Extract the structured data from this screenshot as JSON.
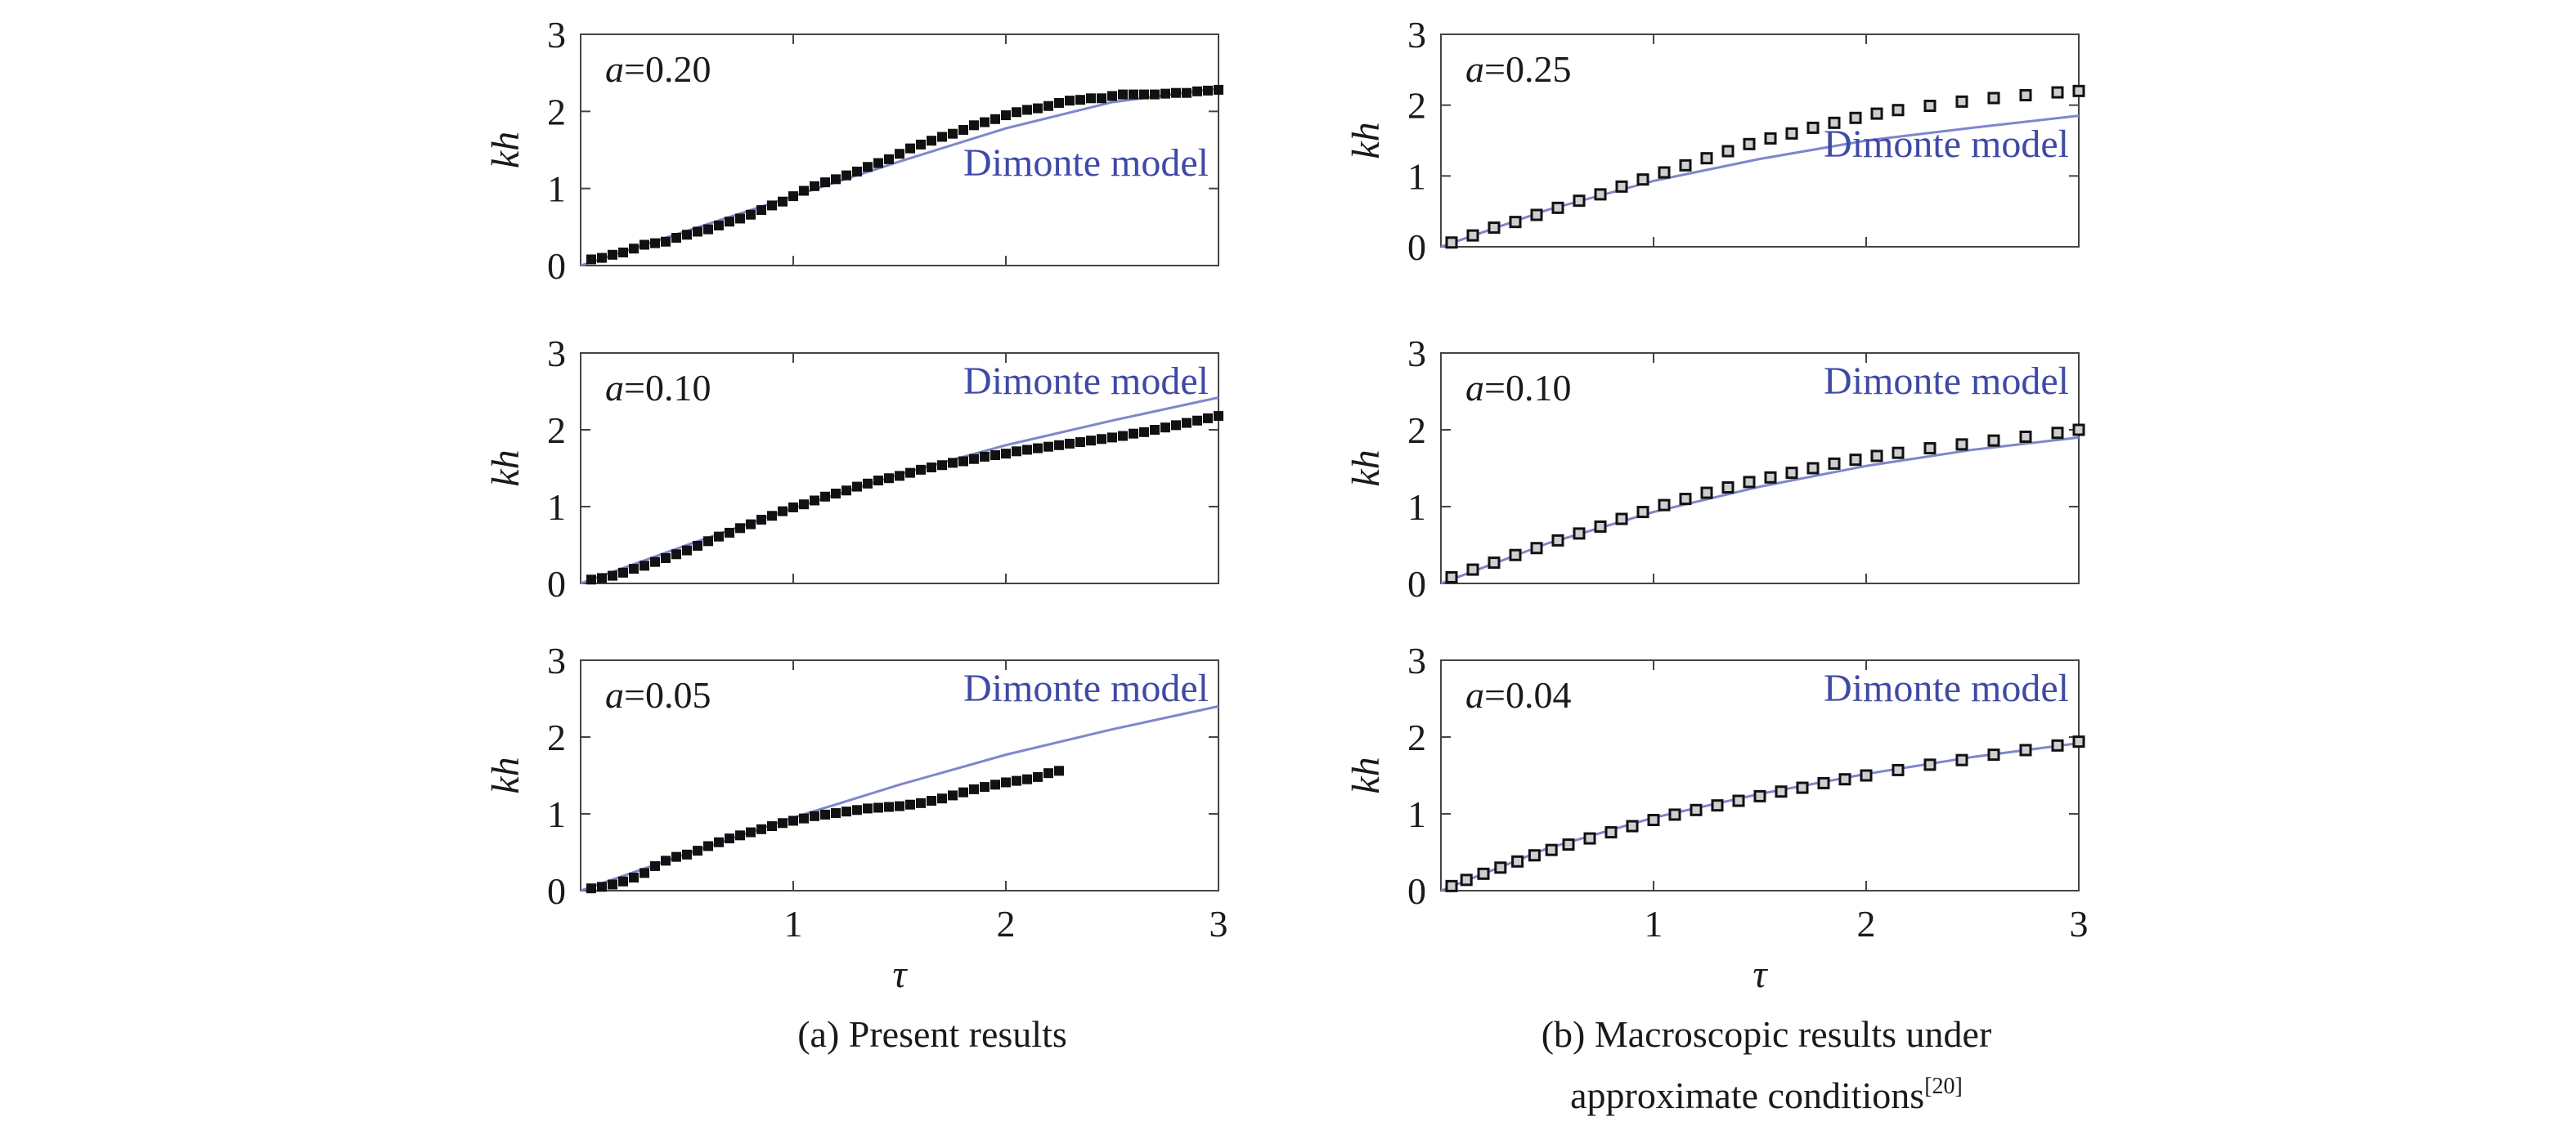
{
  "figure": {
    "caption_a": "(a) Present results",
    "caption_b_line1": "(b) Macroscopic results under",
    "caption_b_line2": "approximate conditions",
    "caption_b_ref": "[20]"
  },
  "colors": {
    "model_line": "#7f86cc",
    "model_text": "#3f4aa6",
    "points": "#111111"
  },
  "chart_data": [
    {
      "id": "a1",
      "type": "scatter",
      "xlabel": "τ",
      "ylabel": "kh",
      "xlim": [
        0,
        3
      ],
      "ylim": [
        0,
        3
      ],
      "xticks": [
        1,
        2
      ],
      "yticks": [
        0,
        1,
        2,
        3
      ],
      "show_xticklabels": false,
      "show_xlabel": false,
      "param_symbol": "a",
      "param_value": "=0.20",
      "model_label": "Dimonte model",
      "model_label_pos": "lower-right",
      "model_curve": {
        "x": [
          0,
          0.5,
          1,
          1.5,
          2,
          2.5,
          3
        ],
        "y": [
          0,
          0.45,
          0.9,
          1.35,
          1.78,
          2.12,
          2.3
        ]
      },
      "series": [
        {
          "name": "present results",
          "x": [
            0.05,
            0.1,
            0.15,
            0.2,
            0.25,
            0.3,
            0.35,
            0.4,
            0.45,
            0.5,
            0.55,
            0.6,
            0.65,
            0.7,
            0.75,
            0.8,
            0.85,
            0.9,
            0.95,
            1.0,
            1.05,
            1.1,
            1.15,
            1.2,
            1.25,
            1.3,
            1.35,
            1.4,
            1.45,
            1.5,
            1.55,
            1.6,
            1.65,
            1.7,
            1.75,
            1.8,
            1.85,
            1.9,
            1.95,
            2.0,
            2.05,
            2.1,
            2.15,
            2.2,
            2.25,
            2.3,
            2.35,
            2.4,
            2.45,
            2.5,
            2.55,
            2.6,
            2.65,
            2.7,
            2.75,
            2.8,
            2.85,
            2.9,
            2.95,
            3.0
          ],
          "y": [
            0.08,
            0.1,
            0.14,
            0.17,
            0.22,
            0.27,
            0.29,
            0.31,
            0.36,
            0.4,
            0.44,
            0.47,
            0.52,
            0.57,
            0.61,
            0.66,
            0.72,
            0.78,
            0.83,
            0.9,
            0.97,
            1.03,
            1.08,
            1.12,
            1.17,
            1.22,
            1.28,
            1.33,
            1.38,
            1.45,
            1.52,
            1.57,
            1.62,
            1.67,
            1.71,
            1.76,
            1.82,
            1.86,
            1.9,
            1.95,
            1.99,
            2.02,
            2.04,
            2.07,
            2.11,
            2.14,
            2.15,
            2.17,
            2.17,
            2.2,
            2.22,
            2.22,
            2.22,
            2.22,
            2.23,
            2.24,
            2.24,
            2.26,
            2.27,
            2.28
          ]
        }
      ]
    },
    {
      "id": "b1",
      "type": "scatter",
      "xlabel": "τ",
      "ylabel": "kh",
      "xlim": [
        0,
        3
      ],
      "ylim": [
        0,
        3
      ],
      "xticks": [
        1,
        2
      ],
      "yticks": [
        0,
        1,
        2,
        3
      ],
      "show_xticklabels": false,
      "show_xlabel": false,
      "param_symbol": "a",
      "param_value": "=0.25",
      "model_label": "Dimonte model",
      "model_label_pos": "lower-right",
      "model_curve": {
        "x": [
          0,
          0.5,
          1,
          1.5,
          2,
          2.5,
          3
        ],
        "y": [
          0,
          0.52,
          0.93,
          1.24,
          1.5,
          1.68,
          1.85
        ]
      },
      "series": [
        {
          "name": "macroscopic results",
          "x": [
            0.05,
            0.15,
            0.25,
            0.35,
            0.45,
            0.55,
            0.65,
            0.75,
            0.85,
            0.95,
            1.05,
            1.15,
            1.25,
            1.35,
            1.45,
            1.55,
            1.65,
            1.75,
            1.85,
            1.95,
            2.05,
            2.15,
            2.3,
            2.45,
            2.6,
            2.75,
            2.9,
            3.0
          ],
          "y": [
            0.06,
            0.16,
            0.27,
            0.35,
            0.45,
            0.55,
            0.65,
            0.74,
            0.85,
            0.95,
            1.05,
            1.15,
            1.25,
            1.35,
            1.45,
            1.53,
            1.6,
            1.68,
            1.75,
            1.82,
            1.88,
            1.93,
            1.99,
            2.05,
            2.1,
            2.14,
            2.18,
            2.2
          ]
        }
      ]
    },
    {
      "id": "a2",
      "type": "scatter",
      "xlabel": "τ",
      "ylabel": "kh",
      "xlim": [
        0,
        3
      ],
      "ylim": [
        0,
        3
      ],
      "xticks": [
        1,
        2
      ],
      "yticks": [
        0,
        1,
        2,
        3
      ],
      "show_xticklabels": false,
      "show_xlabel": false,
      "param_symbol": "a",
      "param_value": "=0.10",
      "model_label": "Dimonte model",
      "model_label_pos": "upper-right",
      "model_curve": {
        "x": [
          0,
          0.5,
          1,
          1.5,
          2,
          2.5,
          3
        ],
        "y": [
          0,
          0.5,
          0.98,
          1.42,
          1.8,
          2.12,
          2.42
        ]
      },
      "series": [
        {
          "name": "present results",
          "x": [
            0.05,
            0.1,
            0.15,
            0.2,
            0.25,
            0.3,
            0.35,
            0.4,
            0.45,
            0.5,
            0.55,
            0.6,
            0.65,
            0.7,
            0.75,
            0.8,
            0.85,
            0.9,
            0.95,
            1.0,
            1.05,
            1.1,
            1.15,
            1.2,
            1.25,
            1.3,
            1.35,
            1.4,
            1.45,
            1.5,
            1.55,
            1.6,
            1.65,
            1.7,
            1.75,
            1.8,
            1.85,
            1.9,
            1.95,
            2.0,
            2.05,
            2.1,
            2.15,
            2.2,
            2.25,
            2.3,
            2.35,
            2.4,
            2.45,
            2.5,
            2.55,
            2.6,
            2.65,
            2.7,
            2.75,
            2.8,
            2.85,
            2.9,
            2.95,
            3.0
          ],
          "y": [
            0.05,
            0.07,
            0.1,
            0.14,
            0.19,
            0.23,
            0.28,
            0.33,
            0.38,
            0.43,
            0.49,
            0.55,
            0.61,
            0.66,
            0.72,
            0.77,
            0.83,
            0.88,
            0.94,
            0.99,
            1.03,
            1.08,
            1.13,
            1.17,
            1.21,
            1.26,
            1.3,
            1.34,
            1.37,
            1.4,
            1.44,
            1.48,
            1.51,
            1.54,
            1.57,
            1.59,
            1.62,
            1.65,
            1.67,
            1.69,
            1.72,
            1.74,
            1.76,
            1.78,
            1.8,
            1.82,
            1.84,
            1.86,
            1.88,
            1.9,
            1.92,
            1.95,
            1.97,
            2.0,
            2.03,
            2.06,
            2.09,
            2.12,
            2.15,
            2.18
          ]
        }
      ]
    },
    {
      "id": "b2",
      "type": "scatter",
      "xlabel": "τ",
      "ylabel": "kh",
      "xlim": [
        0,
        3
      ],
      "ylim": [
        0,
        3
      ],
      "xticks": [
        1,
        2
      ],
      "yticks": [
        0,
        1,
        2,
        3
      ],
      "show_xticklabels": false,
      "show_xlabel": false,
      "param_symbol": "a",
      "param_value": "=0.10",
      "model_label": "Dimonte model",
      "model_label_pos": "upper-right",
      "model_curve": {
        "x": [
          0,
          0.5,
          1,
          1.5,
          2,
          2.5,
          3
        ],
        "y": [
          0,
          0.52,
          0.93,
          1.26,
          1.53,
          1.74,
          1.9
        ]
      },
      "series": [
        {
          "name": "macroscopic results",
          "x": [
            0.05,
            0.15,
            0.25,
            0.35,
            0.45,
            0.55,
            0.65,
            0.75,
            0.85,
            0.95,
            1.05,
            1.15,
            1.25,
            1.35,
            1.45,
            1.55,
            1.65,
            1.75,
            1.85,
            1.95,
            2.05,
            2.15,
            2.3,
            2.45,
            2.6,
            2.75,
            2.9,
            3.0
          ],
          "y": [
            0.08,
            0.18,
            0.27,
            0.37,
            0.46,
            0.56,
            0.65,
            0.74,
            0.84,
            0.93,
            1.02,
            1.1,
            1.18,
            1.25,
            1.32,
            1.38,
            1.44,
            1.5,
            1.56,
            1.61,
            1.66,
            1.7,
            1.76,
            1.81,
            1.86,
            1.91,
            1.96,
            2.0
          ]
        }
      ]
    },
    {
      "id": "a3",
      "type": "scatter",
      "xlabel": "τ",
      "ylabel": "kh",
      "xlim": [
        0,
        3
      ],
      "ylim": [
        0,
        3
      ],
      "xticks": [
        1,
        2
      ],
      "yticks": [
        0,
        1,
        2,
        3
      ],
      "show_xticklabels": true,
      "show_xlabel": true,
      "param_symbol": "a",
      "param_value": "=0.05",
      "model_label": "Dimonte model",
      "model_label_pos": "upper-right",
      "model_curve": {
        "x": [
          0,
          0.5,
          1,
          1.5,
          2,
          2.5,
          3
        ],
        "y": [
          0,
          0.48,
          0.95,
          1.38,
          1.77,
          2.1,
          2.4
        ]
      },
      "series": [
        {
          "name": "present results",
          "x": [
            0.05,
            0.1,
            0.15,
            0.2,
            0.25,
            0.3,
            0.35,
            0.4,
            0.45,
            0.5,
            0.55,
            0.6,
            0.65,
            0.7,
            0.75,
            0.8,
            0.85,
            0.9,
            0.95,
            1.0,
            1.05,
            1.1,
            1.15,
            1.2,
            1.25,
            1.3,
            1.35,
            1.4,
            1.45,
            1.5,
            1.55,
            1.6,
            1.65,
            1.7,
            1.75,
            1.8,
            1.85,
            1.9,
            1.95,
            2.0,
            2.05,
            2.1,
            2.15,
            2.2,
            2.25
          ],
          "y": [
            0.03,
            0.05,
            0.08,
            0.12,
            0.17,
            0.23,
            0.32,
            0.39,
            0.44,
            0.47,
            0.52,
            0.58,
            0.63,
            0.68,
            0.72,
            0.76,
            0.8,
            0.84,
            0.88,
            0.91,
            0.94,
            0.97,
            0.99,
            1.01,
            1.03,
            1.05,
            1.07,
            1.08,
            1.09,
            1.1,
            1.12,
            1.14,
            1.17,
            1.2,
            1.24,
            1.28,
            1.32,
            1.35,
            1.38,
            1.41,
            1.43,
            1.45,
            1.48,
            1.53,
            1.56
          ]
        }
      ]
    },
    {
      "id": "b3",
      "type": "scatter",
      "xlabel": "τ",
      "ylabel": "kh",
      "xlim": [
        0,
        3
      ],
      "ylim": [
        0,
        3
      ],
      "xticks": [
        1,
        2
      ],
      "yticks": [
        0,
        1,
        2,
        3
      ],
      "show_xticklabels": true,
      "show_xlabel": true,
      "param_symbol": "a",
      "param_value": "=0.04",
      "model_label": "Dimonte model",
      "model_label_pos": "upper-right",
      "model_curve": {
        "x": [
          0,
          0.5,
          1,
          1.5,
          2,
          2.5,
          3
        ],
        "y": [
          0,
          0.55,
          0.95,
          1.26,
          1.52,
          1.74,
          1.92
        ]
      },
      "series": [
        {
          "name": "macroscopic results",
          "x": [
            0.05,
            0.12,
            0.2,
            0.28,
            0.36,
            0.44,
            0.52,
            0.6,
            0.7,
            0.8,
            0.9,
            1.0,
            1.1,
            1.2,
            1.3,
            1.4,
            1.5,
            1.6,
            1.7,
            1.8,
            1.9,
            2.0,
            2.15,
            2.3,
            2.45,
            2.6,
            2.75,
            2.9,
            3.0
          ],
          "y": [
            0.06,
            0.14,
            0.22,
            0.3,
            0.38,
            0.46,
            0.53,
            0.6,
            0.68,
            0.76,
            0.84,
            0.92,
            0.99,
            1.05,
            1.11,
            1.17,
            1.23,
            1.29,
            1.34,
            1.4,
            1.45,
            1.5,
            1.57,
            1.64,
            1.7,
            1.77,
            1.83,
            1.89,
            1.94
          ]
        }
      ]
    }
  ]
}
